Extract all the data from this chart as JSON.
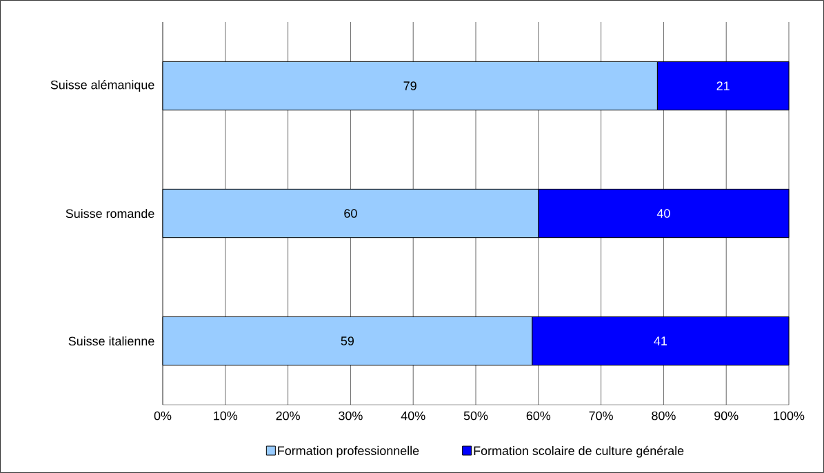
{
  "chart_data": {
    "type": "bar",
    "orientation": "horizontal",
    "stacked": true,
    "categories": [
      "Suisse alémanique",
      "Suisse romande",
      "Suisse italienne"
    ],
    "series": [
      {
        "name": "Formation professionnelle",
        "color": "#99ccff",
        "values": [
          79,
          60,
          59
        ]
      },
      {
        "name": "Formation scolaire de culture générale",
        "color": "#0000ff",
        "values": [
          21,
          40,
          41
        ]
      }
    ],
    "xlim": [
      0,
      100
    ],
    "xticks": [
      {
        "value": 0,
        "label": "0%"
      },
      {
        "value": 10,
        "label": "10%"
      },
      {
        "value": 20,
        "label": "20%"
      },
      {
        "value": 30,
        "label": "30%"
      },
      {
        "value": 40,
        "label": "40%"
      },
      {
        "value": 50,
        "label": "50%"
      },
      {
        "value": 60,
        "label": "60%"
      },
      {
        "value": 70,
        "label": "70%"
      },
      {
        "value": 80,
        "label": "80%"
      },
      {
        "value": 90,
        "label": "90%"
      },
      {
        "value": 100,
        "label": "100%"
      }
    ],
    "grid": "x",
    "legend": "bottom",
    "data_labels": true
  }
}
